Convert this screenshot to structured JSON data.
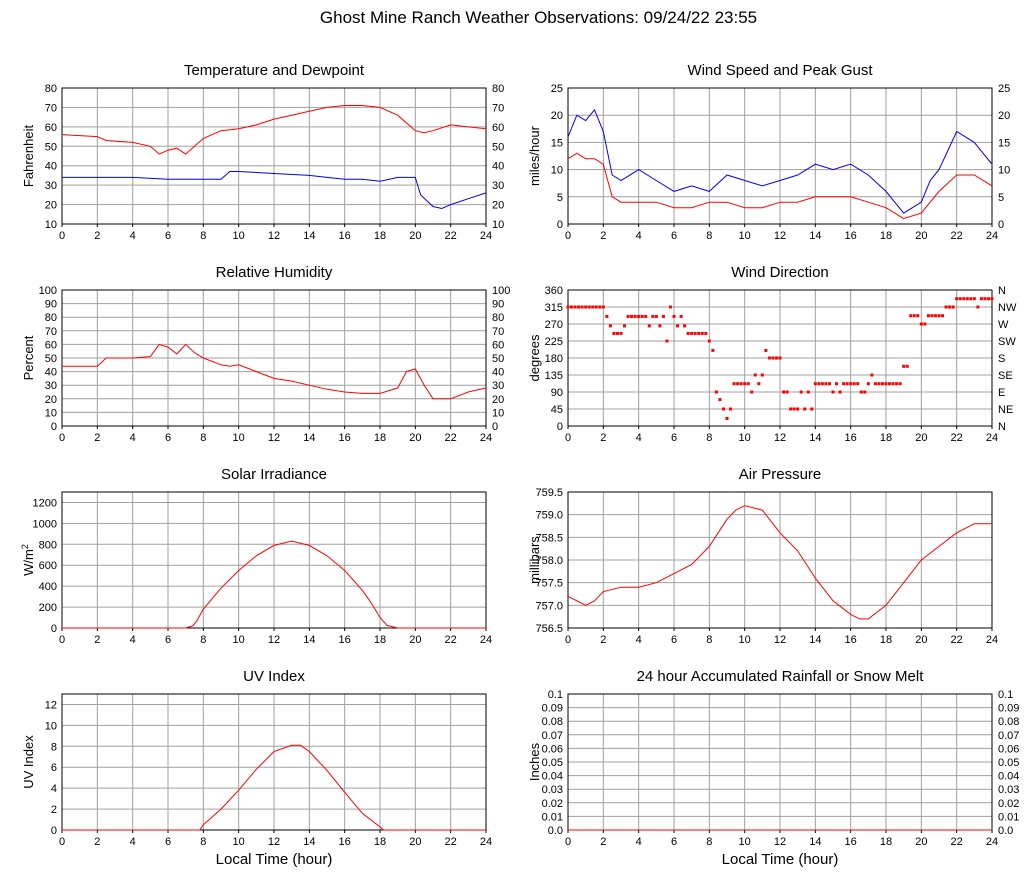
{
  "page_title": "Ghost Mine Ranch Weather Observations: 09/24/22 23:55",
  "colors": {
    "red": "#ff0000",
    "blue": "#0000ff",
    "grid": "#a0a0a0",
    "axis": "#000000"
  },
  "chart_data": [
    {
      "id": "temp",
      "type": "line",
      "title": "Temperature and Dewpoint",
      "xlabel": "",
      "ylabel": "Fahrenheit",
      "xlim": [
        0,
        24
      ],
      "ylim": [
        10,
        80
      ],
      "xticks": [
        0,
        2,
        4,
        6,
        8,
        10,
        12,
        14,
        16,
        18,
        20,
        22,
        24
      ],
      "yticks": [
        "10",
        "20",
        "30",
        "40",
        "50",
        "60",
        "70",
        "80"
      ],
      "right_yticks": [
        "10",
        "20",
        "30",
        "40",
        "50",
        "60",
        "70",
        "80"
      ],
      "series": [
        {
          "color": "#ff0000",
          "x": [
            0,
            1,
            2,
            2.5,
            4,
            5,
            5.5,
            6,
            6.5,
            7,
            7.5,
            8,
            8.5,
            9,
            10,
            11,
            12,
            13,
            14,
            15,
            16,
            17,
            18,
            19,
            20,
            20.5,
            21,
            22,
            23,
            24
          ],
          "y": [
            56,
            55.5,
            55,
            53,
            52,
            50,
            46,
            48,
            49,
            46,
            50,
            54,
            56,
            58,
            59,
            61,
            64,
            66,
            68,
            70,
            71,
            71,
            70,
            66,
            58,
            57,
            58,
            61,
            60,
            59
          ]
        },
        {
          "color": "#0000ff",
          "x": [
            0,
            2,
            4,
            6,
            8,
            9,
            9.5,
            10,
            12,
            14,
            15,
            16,
            17,
            18,
            19,
            20,
            20.3,
            21,
            21.5,
            22,
            23,
            24
          ],
          "y": [
            34,
            34,
            34,
            33,
            33,
            33,
            37,
            37,
            36,
            35,
            34,
            33,
            33,
            32,
            34,
            34,
            25,
            19,
            18,
            20,
            23,
            26
          ]
        }
      ]
    },
    {
      "id": "wind",
      "type": "line",
      "title": "Wind Speed and Peak Gust",
      "xlabel": "",
      "ylabel": "miles/hour",
      "xlim": [
        0,
        24
      ],
      "ylim": [
        0,
        25
      ],
      "xticks": [
        0,
        2,
        4,
        6,
        8,
        10,
        12,
        14,
        16,
        18,
        20,
        22,
        24
      ],
      "yticks": [
        "0",
        "5",
        "10",
        "15",
        "20",
        "25"
      ],
      "right_yticks": [
        "0",
        "5",
        "10",
        "15",
        "20",
        "25"
      ],
      "series": [
        {
          "color": "#0000ff",
          "x": [
            0,
            0.5,
            1,
            1.5,
            2,
            2.5,
            3,
            4,
            5,
            6,
            7,
            8,
            9,
            10,
            11,
            12,
            13,
            14,
            15,
            16,
            17,
            18,
            19,
            20,
            20.5,
            21,
            22,
            23,
            24
          ],
          "y": [
            16,
            20,
            19,
            21,
            17,
            9,
            8,
            10,
            8,
            6,
            7,
            6,
            9,
            8,
            7,
            8,
            9,
            11,
            10,
            11,
            9,
            6,
            2,
            4,
            8,
            10,
            17,
            15,
            11
          ]
        },
        {
          "color": "#ff0000",
          "x": [
            0,
            0.5,
            1,
            1.5,
            2,
            2.5,
            3,
            4,
            5,
            6,
            7,
            8,
            9,
            10,
            11,
            12,
            13,
            14,
            15,
            16,
            17,
            18,
            19,
            20,
            21,
            22,
            23,
            24
          ],
          "y": [
            12,
            13,
            12,
            12,
            11,
            5,
            4,
            4,
            4,
            3,
            3,
            4,
            4,
            3,
            3,
            4,
            4,
            5,
            5,
            5,
            4,
            3,
            1,
            2,
            6,
            9,
            9,
            7
          ]
        }
      ]
    },
    {
      "id": "rh",
      "type": "line",
      "title": "Relative Humidity",
      "xlabel": "",
      "ylabel": "Percent",
      "xlim": [
        0,
        24
      ],
      "ylim": [
        0,
        100
      ],
      "xticks": [
        0,
        2,
        4,
        6,
        8,
        10,
        12,
        14,
        16,
        18,
        20,
        22,
        24
      ],
      "yticks": [
        "0",
        "10",
        "20",
        "30",
        "40",
        "50",
        "60",
        "70",
        "80",
        "90",
        "100"
      ],
      "right_yticks": [
        "0",
        "10",
        "20",
        "30",
        "40",
        "50",
        "60",
        "70",
        "80",
        "90",
        "100"
      ],
      "series": [
        {
          "color": "#ff0000",
          "x": [
            0,
            2,
            2.5,
            4,
            5,
            5.5,
            6,
            6.5,
            7,
            7.5,
            8,
            9,
            9.5,
            10,
            11,
            12,
            13,
            14,
            15,
            16,
            17,
            18,
            19,
            19.5,
            20,
            20.5,
            21,
            22,
            23,
            24
          ],
          "y": [
            44,
            44,
            50,
            50,
            51,
            60,
            58,
            53,
            60,
            54,
            50,
            45,
            44,
            45,
            40,
            35,
            33,
            30,
            27,
            25,
            24,
            24,
            28,
            40,
            42,
            30,
            20,
            20,
            25,
            28
          ]
        }
      ]
    },
    {
      "id": "winddir",
      "type": "scatter",
      "title": "Wind Direction",
      "xlabel": "",
      "ylabel": "degrees",
      "xlim": [
        0,
        24
      ],
      "ylim": [
        0,
        360
      ],
      "xticks": [
        0,
        2,
        4,
        6,
        8,
        10,
        12,
        14,
        16,
        18,
        20,
        22,
        24
      ],
      "yticks": [
        "0",
        "45",
        "90",
        "135",
        "180",
        "225",
        "270",
        "315",
        "360"
      ],
      "right_yticks": [
        "N",
        "NE",
        "E",
        "SE",
        "S",
        "SW",
        "W",
        "NW",
        "N"
      ],
      "series": [
        {
          "color": "#ff0000",
          "x": [
            0,
            0.2,
            0.4,
            0.6,
            0.8,
            1.0,
            1.2,
            1.4,
            1.6,
            1.8,
            2.0,
            2.2,
            2.4,
            2.6,
            2.8,
            3.0,
            3.2,
            3.4,
            3.6,
            3.8,
            4.0,
            4.2,
            4.4,
            4.6,
            4.8,
            5.0,
            5.2,
            5.4,
            5.6,
            5.8,
            6.0,
            6.2,
            6.4,
            6.6,
            6.8,
            7.0,
            7.2,
            7.4,
            7.6,
            7.8,
            8.0,
            8.2,
            8.4,
            8.6,
            8.8,
            9.0,
            9.2,
            9.4,
            9.6,
            9.8,
            10.0,
            10.2,
            10.4,
            10.6,
            10.8,
            11.0,
            11.2,
            11.4,
            11.6,
            11.8,
            12.0,
            12.2,
            12.4,
            12.6,
            12.8,
            13.0,
            13.2,
            13.4,
            13.6,
            13.8,
            14.0,
            14.2,
            14.4,
            14.6,
            14.8,
            15.0,
            15.2,
            15.4,
            15.6,
            15.8,
            16.0,
            16.2,
            16.4,
            16.6,
            16.8,
            17.0,
            17.2,
            17.4,
            17.6,
            17.8,
            18.0,
            18.2,
            18.4,
            18.6,
            18.8,
            19.0,
            19.2,
            19.4,
            19.6,
            19.8,
            20.0,
            20.2,
            20.4,
            20.6,
            20.8,
            21.0,
            21.2,
            21.4,
            21.6,
            21.8,
            22.0,
            22.2,
            22.4,
            22.6,
            22.8,
            23.0,
            23.2,
            23.4,
            23.6,
            23.8,
            24.0
          ],
          "y": [
            315,
            315,
            315,
            315,
            315,
            315,
            315,
            315,
            315,
            315,
            315,
            290,
            265,
            245,
            245,
            245,
            265,
            290,
            290,
            290,
            290,
            290,
            290,
            265,
            290,
            290,
            265,
            290,
            225,
            315,
            290,
            265,
            290,
            265,
            245,
            245,
            245,
            245,
            245,
            245,
            225,
            200,
            90,
            70,
            45,
            20,
            45,
            112,
            112,
            112,
            112,
            112,
            90,
            135,
            112,
            135,
            200,
            180,
            180,
            180,
            180,
            90,
            90,
            45,
            45,
            45,
            90,
            45,
            90,
            45,
            112,
            112,
            112,
            112,
            112,
            90,
            112,
            90,
            112,
            112,
            112,
            112,
            112,
            90,
            90,
            112,
            135,
            112,
            112,
            112,
            112,
            112,
            112,
            112,
            112,
            158,
            158,
            292,
            292,
            292,
            270,
            270,
            292,
            292,
            292,
            292,
            292,
            315,
            315,
            315,
            337,
            337,
            337,
            337,
            337,
            337,
            315,
            337,
            337,
            337,
            337
          ]
        }
      ]
    },
    {
      "id": "solar",
      "type": "line",
      "title": "Solar Irradiance",
      "xlabel": "",
      "ylabel": "W/m",
      "ylabel_sup": "2",
      "xlim": [
        0,
        24
      ],
      "ylim": [
        0,
        1300
      ],
      "xticks": [
        0,
        2,
        4,
        6,
        8,
        10,
        12,
        14,
        16,
        18,
        20,
        22,
        24
      ],
      "yticks": [
        "0",
        "200",
        "400",
        "600",
        "800",
        "1000",
        "1200"
      ],
      "ytick_values": [
        0,
        200,
        400,
        600,
        800,
        1000,
        1200
      ],
      "right_yticks": [],
      "series": [
        {
          "color": "#ff0000",
          "x": [
            0,
            7,
            7.4,
            7.6,
            8,
            9,
            10,
            11,
            12,
            13,
            14,
            15,
            16,
            17,
            17.5,
            18,
            18.4,
            19,
            24
          ],
          "y": [
            0,
            0,
            20,
            60,
            180,
            380,
            550,
            690,
            790,
            830,
            790,
            690,
            550,
            360,
            240,
            100,
            25,
            0,
            0
          ]
        }
      ]
    },
    {
      "id": "pressure",
      "type": "line",
      "title": "Air Pressure",
      "xlabel": "",
      "ylabel": "millibars",
      "xlim": [
        0,
        24
      ],
      "ylim": [
        756.5,
        759.5
      ],
      "xticks": [
        0,
        2,
        4,
        6,
        8,
        10,
        12,
        14,
        16,
        18,
        20,
        22,
        24
      ],
      "yticks": [
        "756.5",
        "757.0",
        "757.5",
        "758.0",
        "758.5",
        "759.0",
        "759.5"
      ],
      "ytick_values": [
        756.5,
        757.0,
        757.5,
        758.0,
        758.5,
        759.0,
        759.5
      ],
      "right_yticks": [],
      "series": [
        {
          "color": "#ff0000",
          "x": [
            0,
            0.5,
            1,
            1.5,
            2,
            3,
            4,
            5,
            6,
            7,
            8,
            9,
            9.5,
            10,
            11,
            12,
            13,
            14,
            15,
            16,
            16.5,
            17,
            18,
            19,
            20,
            21,
            22,
            23,
            24
          ],
          "y": [
            757.2,
            757.1,
            757.0,
            757.1,
            757.3,
            757.4,
            757.4,
            757.5,
            757.7,
            757.9,
            758.3,
            758.9,
            759.1,
            759.2,
            759.1,
            758.6,
            758.2,
            757.6,
            757.1,
            756.8,
            756.7,
            756.7,
            757.0,
            757.5,
            758.0,
            758.3,
            758.6,
            758.8,
            758.8
          ]
        }
      ]
    },
    {
      "id": "uv",
      "type": "line",
      "title": "UV Index",
      "xlabel": "Local Time (hour)",
      "ylabel": "UV Index",
      "xlim": [
        0,
        24
      ],
      "ylim": [
        0,
        13
      ],
      "xticks": [
        0,
        2,
        4,
        6,
        8,
        10,
        12,
        14,
        16,
        18,
        20,
        22,
        24
      ],
      "yticks": [
        "0",
        "2",
        "4",
        "6",
        "8",
        "10",
        "12"
      ],
      "ytick_values": [
        0,
        2,
        4,
        6,
        8,
        10,
        12
      ],
      "right_yticks": [],
      "series": [
        {
          "color": "#ff0000",
          "x": [
            0,
            7.8,
            8,
            9,
            10,
            11,
            12,
            13,
            13.5,
            14,
            15,
            16,
            17,
            18,
            18.2,
            19,
            24
          ],
          "y": [
            0,
            0,
            0.5,
            2,
            3.8,
            5.8,
            7.5,
            8.1,
            8.1,
            7.5,
            5.7,
            3.6,
            1.6,
            0.3,
            0,
            0,
            0
          ]
        }
      ]
    },
    {
      "id": "rain",
      "type": "line",
      "title": "24 hour Accumulated Rainfall or Snow Melt",
      "xlabel": "Local Time (hour)",
      "ylabel": "Inches",
      "xlim": [
        0,
        24
      ],
      "ylim": [
        0,
        0.1
      ],
      "xticks": [
        0,
        2,
        4,
        6,
        8,
        10,
        12,
        14,
        16,
        18,
        20,
        22,
        24
      ],
      "yticks": [
        "0.0",
        "0.01",
        "0.02",
        "0.03",
        "0.04",
        "0.05",
        "0.06",
        "0.07",
        "0.08",
        "0.09",
        "0.1"
      ],
      "right_yticks": [
        "0.0",
        "0.01",
        "0.02",
        "0.03",
        "0.04",
        "0.05",
        "0.06",
        "0.07",
        "0.08",
        "0.09",
        "0.1"
      ],
      "series": [
        {
          "color": "#ff0000",
          "x": [
            0,
            24
          ],
          "y": [
            0,
            0
          ]
        }
      ]
    }
  ]
}
